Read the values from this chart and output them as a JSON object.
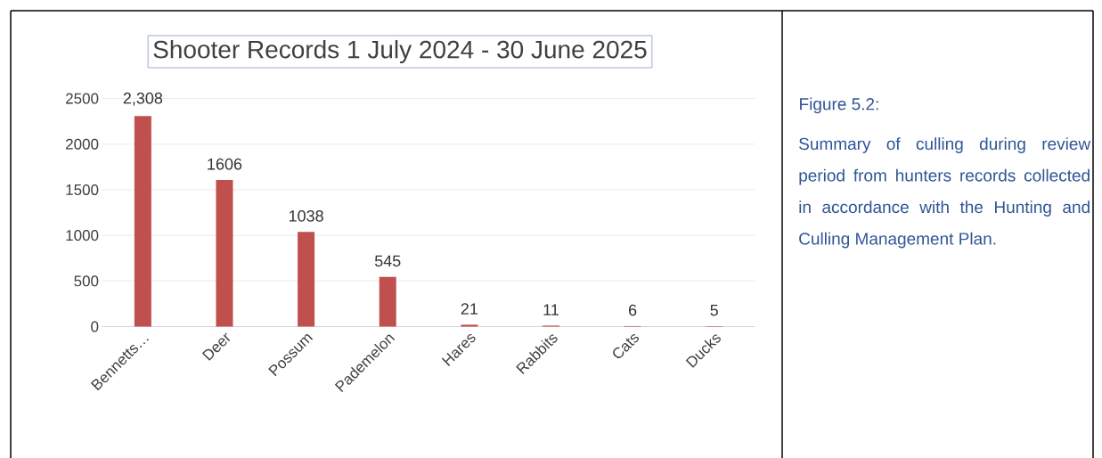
{
  "chart_data": {
    "type": "bar",
    "title": "Shooter Records 1 July 2024 - 30 June 2025",
    "categories": [
      "Bennetts…",
      "Deer",
      "Possum",
      "Pademelon",
      "Hares",
      "Rabbits",
      "Cats",
      "Ducks"
    ],
    "values": [
      2308,
      1606,
      1038,
      545,
      21,
      11,
      6,
      5
    ],
    "value_labels": [
      "2,308",
      "1606",
      "1038",
      "545",
      "21",
      "11",
      "6",
      "5"
    ],
    "color": "#c0504d",
    "ylim": [
      0,
      2500
    ],
    "yticks": [
      0,
      500,
      1000,
      1500,
      2000,
      2500
    ],
    "grid": "y",
    "annotations": [
      "Figure 5.2:",
      "Summary of culling during review period from hunters records collected in accordance with the Hunting and Culling Management Plan."
    ]
  }
}
